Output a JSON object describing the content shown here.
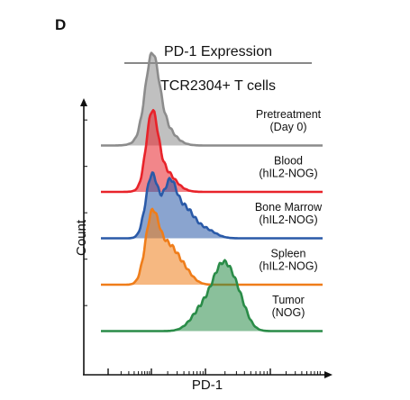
{
  "panel_letter": "D",
  "chart_data": {
    "type": "area",
    "title": "PD-1 Expression",
    "subtitle": "TCR2304+ T cells",
    "xlabel": "PD-1",
    "ylabel": "Count",
    "grid": false,
    "layout": "stacked histograms (one row per sample), shared PD-1 axis",
    "x_range": [
      0,
      1
    ],
    "x_note": "relative PD-1 fluorescence position (axis has no printed numeric tick labels)",
    "series": [
      {
        "label_lines": [
          "Pretreatment",
          "(Day 0)"
        ],
        "color": "#8c8c8c",
        "peaks": [
          [
            0.23,
            0.03,
            0.95
          ],
          [
            0.26,
            0.055,
            0.35
          ]
        ]
      },
      {
        "label_lines": [
          "Blood",
          "(hIL2-NOG)"
        ],
        "color": "#e8232a",
        "peaks": [
          [
            0.23,
            0.026,
            0.92
          ],
          [
            0.28,
            0.05,
            0.3
          ]
        ]
      },
      {
        "label_lines": [
          "Bone Marrow",
          "(hIL2-NOG)"
        ],
        "color": "#2a5aa8",
        "peaks": [
          [
            0.23,
            0.028,
            0.85
          ],
          [
            0.31,
            0.03,
            0.7
          ],
          [
            0.38,
            0.04,
            0.38
          ],
          [
            0.47,
            0.045,
            0.12
          ]
        ]
      },
      {
        "label_lines": [
          "Spleen",
          "(hIL2-NOG)"
        ],
        "color": "#ef7d1a",
        "peaks": [
          [
            0.23,
            0.03,
            0.9
          ],
          [
            0.3,
            0.04,
            0.48
          ],
          [
            0.37,
            0.04,
            0.2
          ]
        ]
      },
      {
        "label_lines": [
          "Tumor",
          "(NOG)"
        ],
        "color": "#2a8c48",
        "peaks": [
          [
            0.55,
            0.045,
            0.8
          ],
          [
            0.46,
            0.05,
            0.3
          ],
          [
            0.62,
            0.04,
            0.35
          ]
        ]
      }
    ]
  }
}
